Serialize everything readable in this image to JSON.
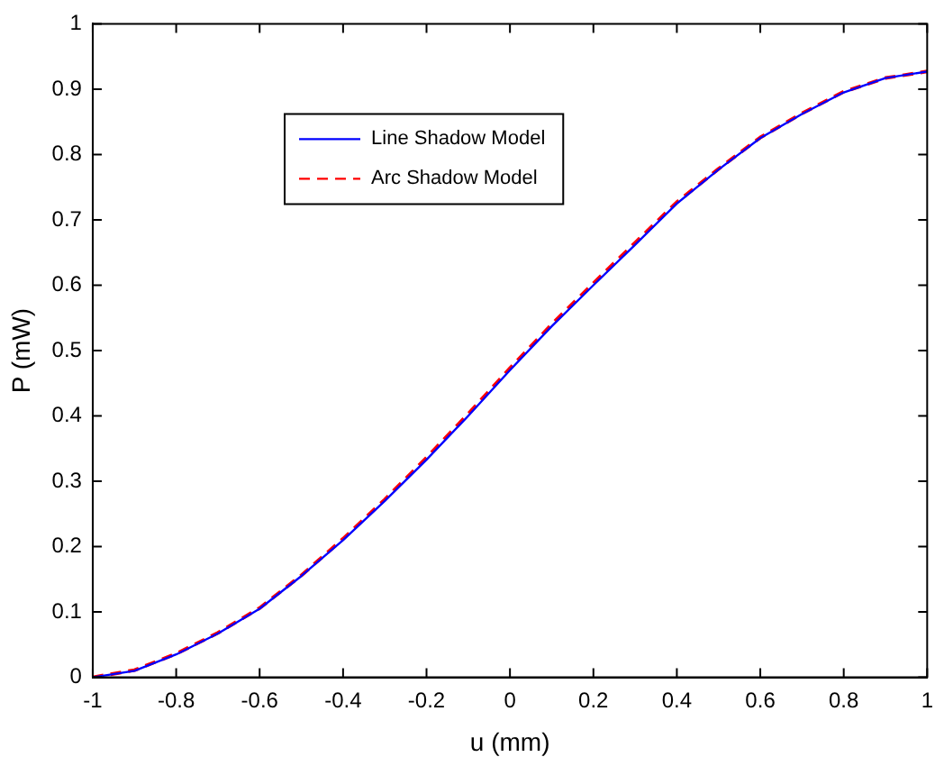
{
  "chart_data": {
    "type": "line",
    "xlabel": "u (mm)",
    "ylabel": "P (mW)",
    "x": [
      -1,
      -0.9,
      -0.8,
      -0.7,
      -0.6,
      -0.5,
      -0.4,
      -0.3,
      -0.2,
      -0.1,
      0,
      0.1,
      0.2,
      0.3,
      0.4,
      0.5,
      0.6,
      0.7,
      0.8,
      0.9,
      1
    ],
    "series": [
      {
        "name": "Line Shadow Model",
        "color": "#0000ff",
        "line_style": "solid",
        "values": [
          0,
          0.01,
          0.035,
          0.067,
          0.105,
          0.155,
          0.21,
          0.27,
          0.333,
          0.4,
          0.47,
          0.537,
          0.6,
          0.662,
          0.725,
          0.777,
          0.825,
          0.862,
          0.895,
          0.917,
          0.927
        ]
      },
      {
        "name": "Arc Shadow Model",
        "color": "#ff0000",
        "line_style": "dashed",
        "values": [
          0,
          0.011,
          0.036,
          0.068,
          0.106,
          0.156,
          0.212,
          0.272,
          0.336,
          0.403,
          0.473,
          0.54,
          0.603,
          0.665,
          0.727,
          0.778,
          0.826,
          0.863,
          0.896,
          0.917,
          0.927
        ]
      }
    ],
    "xlim": [
      -1,
      1
    ],
    "ylim": [
      0,
      1
    ],
    "xticks": [
      -1,
      -0.8,
      -0.6,
      -0.4,
      -0.2,
      0,
      0.2,
      0.4,
      0.6,
      0.8,
      1
    ],
    "yticks": [
      0,
      0.1,
      0.2,
      0.3,
      0.4,
      0.5,
      0.6,
      0.7,
      0.8,
      0.9,
      1
    ],
    "grid": false,
    "legend": "top left",
    "marker": "none"
  }
}
